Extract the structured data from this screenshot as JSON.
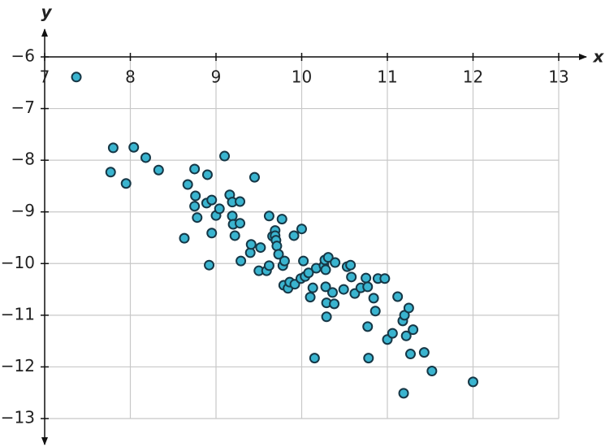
{
  "chart_data": {
    "type": "scatter",
    "x_label": "x",
    "y_label": "y",
    "xlim": [
      7,
      13
    ],
    "ylim": [
      -13,
      -6
    ],
    "xticks": [
      7,
      8,
      9,
      10,
      11,
      12,
      13
    ],
    "yticks": [
      {
        "value": -6,
        "label": "−6"
      },
      {
        "value": -7,
        "label": "−7"
      },
      {
        "value": -8,
        "label": "−8"
      },
      {
        "value": -9,
        "label": "−9"
      },
      {
        "value": -10,
        "label": "−10"
      },
      {
        "value": -11,
        "label": "−11"
      },
      {
        "value": -12,
        "label": "−12"
      },
      {
        "value": -13,
        "label": "−13"
      }
    ],
    "grid": true,
    "color": "#3ab4cf",
    "edge_color": "#163746",
    "x": [
      7.37,
      7.8,
      7.77,
      7.95,
      8.04,
      8.18,
      8.33,
      8.63,
      8.67,
      8.75,
      8.76,
      8.75,
      8.78,
      8.9,
      8.89,
      8.95,
      8.95,
      8.92,
      9.0,
      9.04,
      9.1,
      9.16,
      9.19,
      9.19,
      9.2,
      9.22,
      9.28,
      9.28,
      9.29,
      9.4,
      9.41,
      9.45,
      9.5,
      9.52,
      9.59,
      9.62,
      9.62,
      9.66,
      9.69,
      9.69,
      9.7,
      9.71,
      9.73,
      9.77,
      9.78,
      9.8,
      9.79,
      9.84,
      9.86,
      9.91,
      9.92,
      9.99,
      10.0,
      10.02,
      10.04,
      10.08,
      10.1,
      10.13,
      10.15,
      10.17,
      10.26,
      10.27,
      10.28,
      10.28,
      10.29,
      10.29,
      10.31,
      10.36,
      10.38,
      10.39,
      10.49,
      10.53,
      10.57,
      10.58,
      10.62,
      10.69,
      10.75,
      10.77,
      10.77,
      10.78,
      10.84,
      10.86,
      10.89,
      10.97,
      11.0,
      11.06,
      11.12,
      11.18,
      11.2,
      11.19,
      11.22,
      11.25,
      11.27,
      11.3,
      11.43,
      11.52,
      12.0
    ],
    "y": [
      -6.39,
      -7.76,
      -8.23,
      -8.45,
      -7.75,
      -7.95,
      -8.19,
      -9.51,
      -8.47,
      -8.17,
      -8.69,
      -8.89,
      -9.11,
      -8.28,
      -8.83,
      -8.77,
      -9.41,
      -10.03,
      -9.07,
      -8.94,
      -7.92,
      -8.67,
      -8.81,
      -9.08,
      -9.24,
      -9.46,
      -8.8,
      -9.22,
      -9.95,
      -9.79,
      -9.63,
      -8.33,
      -10.14,
      -9.69,
      -10.14,
      -9.08,
      -10.04,
      -9.47,
      -9.36,
      -9.46,
      -9.55,
      -9.66,
      -9.82,
      -9.14,
      -10.04,
      -9.95,
      -10.42,
      -10.48,
      -10.36,
      -9.46,
      -10.4,
      -10.29,
      -9.33,
      -9.95,
      -10.25,
      -10.18,
      -10.65,
      -10.47,
      -11.83,
      -10.09,
      -10.04,
      -9.93,
      -10.12,
      -10.45,
      -10.76,
      -11.03,
      -9.88,
      -10.56,
      -10.78,
      -9.98,
      -10.5,
      -10.06,
      -10.03,
      -10.26,
      -10.58,
      -10.47,
      -10.28,
      -11.22,
      -10.45,
      -11.83,
      -10.67,
      -10.92,
      -10.29,
      -10.29,
      -11.47,
      -11.35,
      -10.64,
      -11.11,
      -11.0,
      -12.51,
      -11.4,
      -10.86,
      -11.75,
      -11.28,
      -11.72,
      -12.08,
      -12.29
    ]
  }
}
